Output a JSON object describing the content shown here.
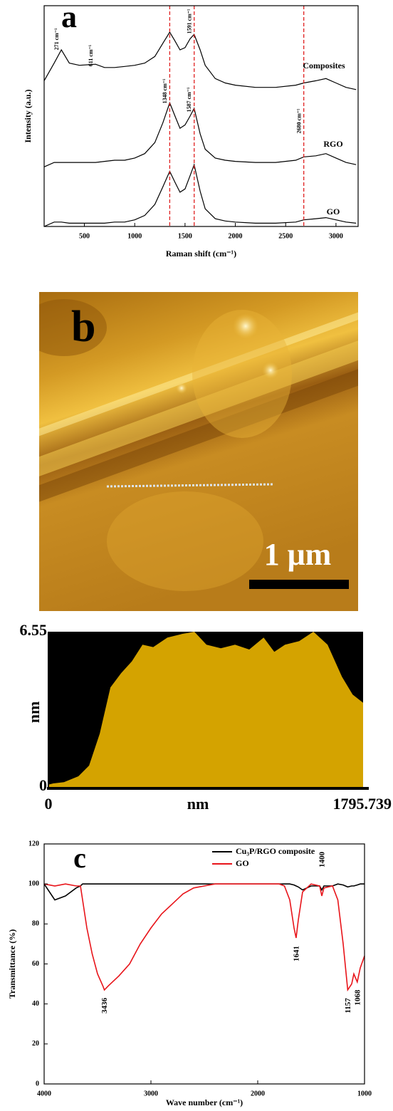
{
  "chart_data": [
    {
      "type": "line",
      "label": "a",
      "xlabel": "Raman shift (cm⁻¹)",
      "ylabel": "Intensity (a.u.)",
      "x": [
        100,
        200,
        271,
        350,
        450,
        611,
        700,
        800,
        900,
        1000,
        1100,
        1200,
        1280,
        1348,
        1400,
        1450,
        1500,
        1550,
        1591,
        1650,
        1700,
        1800,
        1900,
        2000,
        2200,
        2400,
        2600,
        2680,
        2800,
        2900,
        3000,
        3100,
        3200
      ],
      "series": [
        {
          "name": "Composites",
          "color": "#000000",
          "values": [
            66,
            74,
            80,
            74,
            73,
            73.5,
            72,
            72,
            72.5,
            73,
            74,
            77,
            83,
            88,
            84,
            80,
            81,
            85,
            87,
            80,
            73,
            67,
            65,
            64,
            63,
            63,
            64,
            65,
            66,
            67,
            65,
            63,
            62
          ]
        },
        {
          "name": "RGO",
          "color": "#000000",
          "values": [
            27,
            29,
            29,
            29,
            29,
            29,
            29.5,
            30,
            30,
            31,
            33,
            38,
            47,
            56,
            50,
            44.5,
            46,
            50,
            53.5,
            42,
            35,
            31,
            30,
            29.5,
            29,
            29,
            30,
            31.5,
            32,
            33,
            31,
            29,
            28
          ]
        },
        {
          "name": "GO",
          "color": "#000000",
          "values": [
            0,
            2,
            2,
            1.5,
            1.5,
            1.5,
            1.5,
            2,
            2,
            3,
            5,
            10,
            18,
            25,
            20,
            15.5,
            17,
            23,
            28,
            16,
            8,
            3.5,
            2.5,
            2,
            1.5,
            1.5,
            2,
            3,
            3.5,
            4,
            3,
            2,
            1.5
          ]
        }
      ],
      "annotations": [
        {
          "value": 271,
          "label": "271 cm⁻¹"
        },
        {
          "value": 611,
          "label": "611 cm⁻¹"
        },
        {
          "value": 1348,
          "label": "1348 cm⁻¹"
        },
        {
          "value": 1587,
          "label": "1587 cm⁻¹"
        },
        {
          "value": 1591,
          "label": "1591 cm⁻¹"
        },
        {
          "value": 2680,
          "label": "2680 cm⁻¹"
        }
      ],
      "reference_lines": [
        1348,
        1591,
        2680
      ],
      "reference_color": "#e02020",
      "xlim": [
        100,
        3220
      ],
      "ylim": [
        0,
        100
      ],
      "xticks": [
        500,
        1000,
        1500,
        2000,
        2500,
        3000
      ]
    },
    {
      "type": "area",
      "xlabel": "nm",
      "ylabel": "nm",
      "color": "#d4a300",
      "x": [
        0,
        28,
        89,
        171,
        232,
        293,
        354,
        415,
        476,
        537,
        598,
        679,
        760,
        833,
        902,
        984,
        1065,
        1146,
        1228,
        1289,
        1350,
        1431,
        1512,
        1593,
        1675,
        1736,
        1795.739
      ],
      "values": [
        0.1,
        0.15,
        0.2,
        0.45,
        0.9,
        2.25,
        4.2,
        4.8,
        5.3,
        6.0,
        5.9,
        6.3,
        6.45,
        6.55,
        6.0,
        5.85,
        6.0,
        5.8,
        6.3,
        5.7,
        6.0,
        6.15,
        6.55,
        6.0,
        4.65,
        3.9,
        3.55
      ],
      "xlim": [
        0,
        1795.739
      ],
      "ylim": [
        0,
        6.55
      ],
      "xticks": [
        0,
        1795.739
      ],
      "yticks": [
        0,
        6.55
      ]
    },
    {
      "type": "line",
      "label": "c",
      "xlabel": "Wave number (cm⁻¹)",
      "ylabel": "Transmittance (%)",
      "legend": "upper right",
      "x": [
        4000,
        3900,
        3800,
        3700,
        3660,
        3640,
        3600,
        3550,
        3500,
        3450,
        3436,
        3400,
        3300,
        3200,
        3100,
        3000,
        2900,
        2800,
        2700,
        2600,
        2500,
        2400,
        2000,
        1800,
        1750,
        1700,
        1660,
        1641,
        1620,
        1580,
        1500,
        1420,
        1400,
        1380,
        1300,
        1250,
        1200,
        1157,
        1120,
        1100,
        1068,
        1040,
        1000
      ],
      "series": [
        {
          "name": "Cu₃P/RGO composite",
          "color": "#000000",
          "values": [
            100,
            92,
            94,
            98,
            99,
            100,
            100,
            100,
            100,
            100,
            100,
            100,
            100,
            100,
            100,
            100,
            100,
            100,
            100,
            100,
            100,
            100,
            100,
            100,
            100,
            100,
            99.5,
            99,
            98.5,
            97,
            99,
            99,
            97,
            99,
            99,
            100,
            99.5,
            98.5,
            99,
            99,
            99.5,
            100,
            100
          ]
        },
        {
          "name": "GO",
          "color": "#e8141a",
          "values": [
            100,
            99,
            100,
            99,
            99,
            92,
            78,
            65,
            55,
            49,
            47,
            49,
            54,
            60,
            70,
            78,
            85,
            90,
            95,
            98,
            99,
            100,
            100,
            100,
            99,
            92,
            78,
            73,
            82,
            96,
            100,
            99,
            94,
            98,
            99,
            92,
            70,
            47,
            50,
            55,
            51,
            58,
            64
          ]
        }
      ],
      "peak_labels": [
        3436,
        1641,
        1400,
        1157,
        1068
      ],
      "xlim": [
        4000,
        1000
      ],
      "ylim": [
        0,
        120
      ],
      "xticks": [
        4000,
        3000,
        2000,
        1000
      ],
      "yticks": [
        0,
        20,
        40,
        60,
        80,
        100,
        120
      ]
    }
  ],
  "image": {
    "label": "b",
    "scale_bar": "1 μm"
  }
}
